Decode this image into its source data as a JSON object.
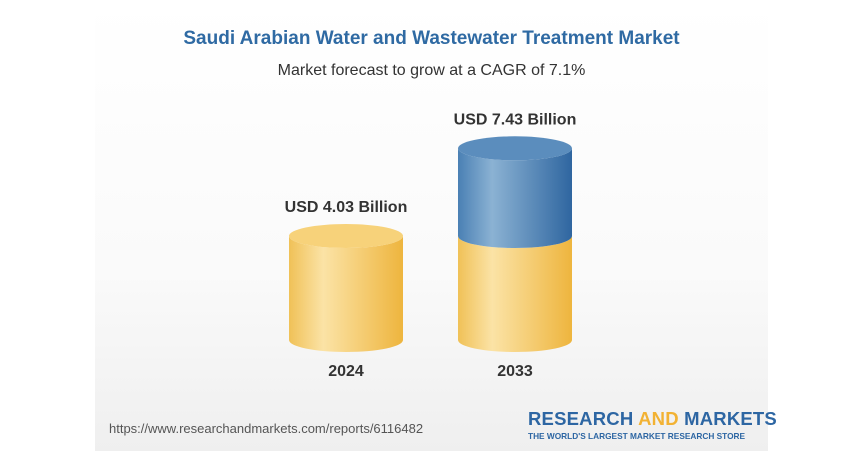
{
  "chart_data": {
    "type": "bar",
    "title": "Saudi Arabian Water and Wastewater Treatment Market",
    "subtitle": "Market forecast to grow at a CAGR of 7.1%",
    "categories": [
      "2024",
      "2033"
    ],
    "values": [
      4.03,
      7.43
    ],
    "data_labels": [
      "USD 4.03 Billion",
      "USD 7.43 Billion"
    ],
    "unit": "USD Billion",
    "colors": {
      "base": "#f3c453",
      "growth": "#3f78ad"
    }
  },
  "footer": {
    "url": "https://www.researchandmarkets.com/reports/6116482",
    "logo_part1": "RESEARCH ",
    "logo_part2": "AND",
    "logo_part3": " MARKETS",
    "tagline": "THE WORLD'S LARGEST MARKET RESEARCH STORE"
  }
}
